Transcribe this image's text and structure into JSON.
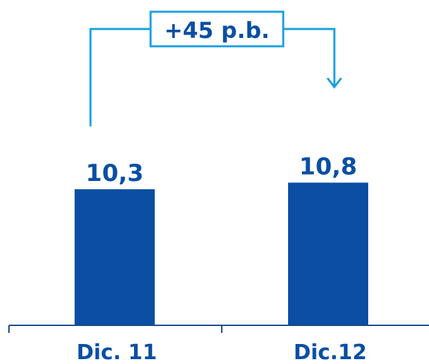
{
  "chart_data": {
    "type": "bar",
    "categories": [
      "Dic. 11",
      "Dic.12"
    ],
    "values": [
      10.3,
      10.8
    ],
    "data_labels": [
      "10,3",
      "10,8"
    ],
    "annotation": "+45 p.b.",
    "ylim": [
      0,
      13
    ],
    "grid": false,
    "legend": "none",
    "colors": {
      "bar": "#0a4fa3",
      "annotation": "#1aa0e0",
      "axis": "#1a4a8a",
      "text": "#0a4fa3"
    }
  }
}
